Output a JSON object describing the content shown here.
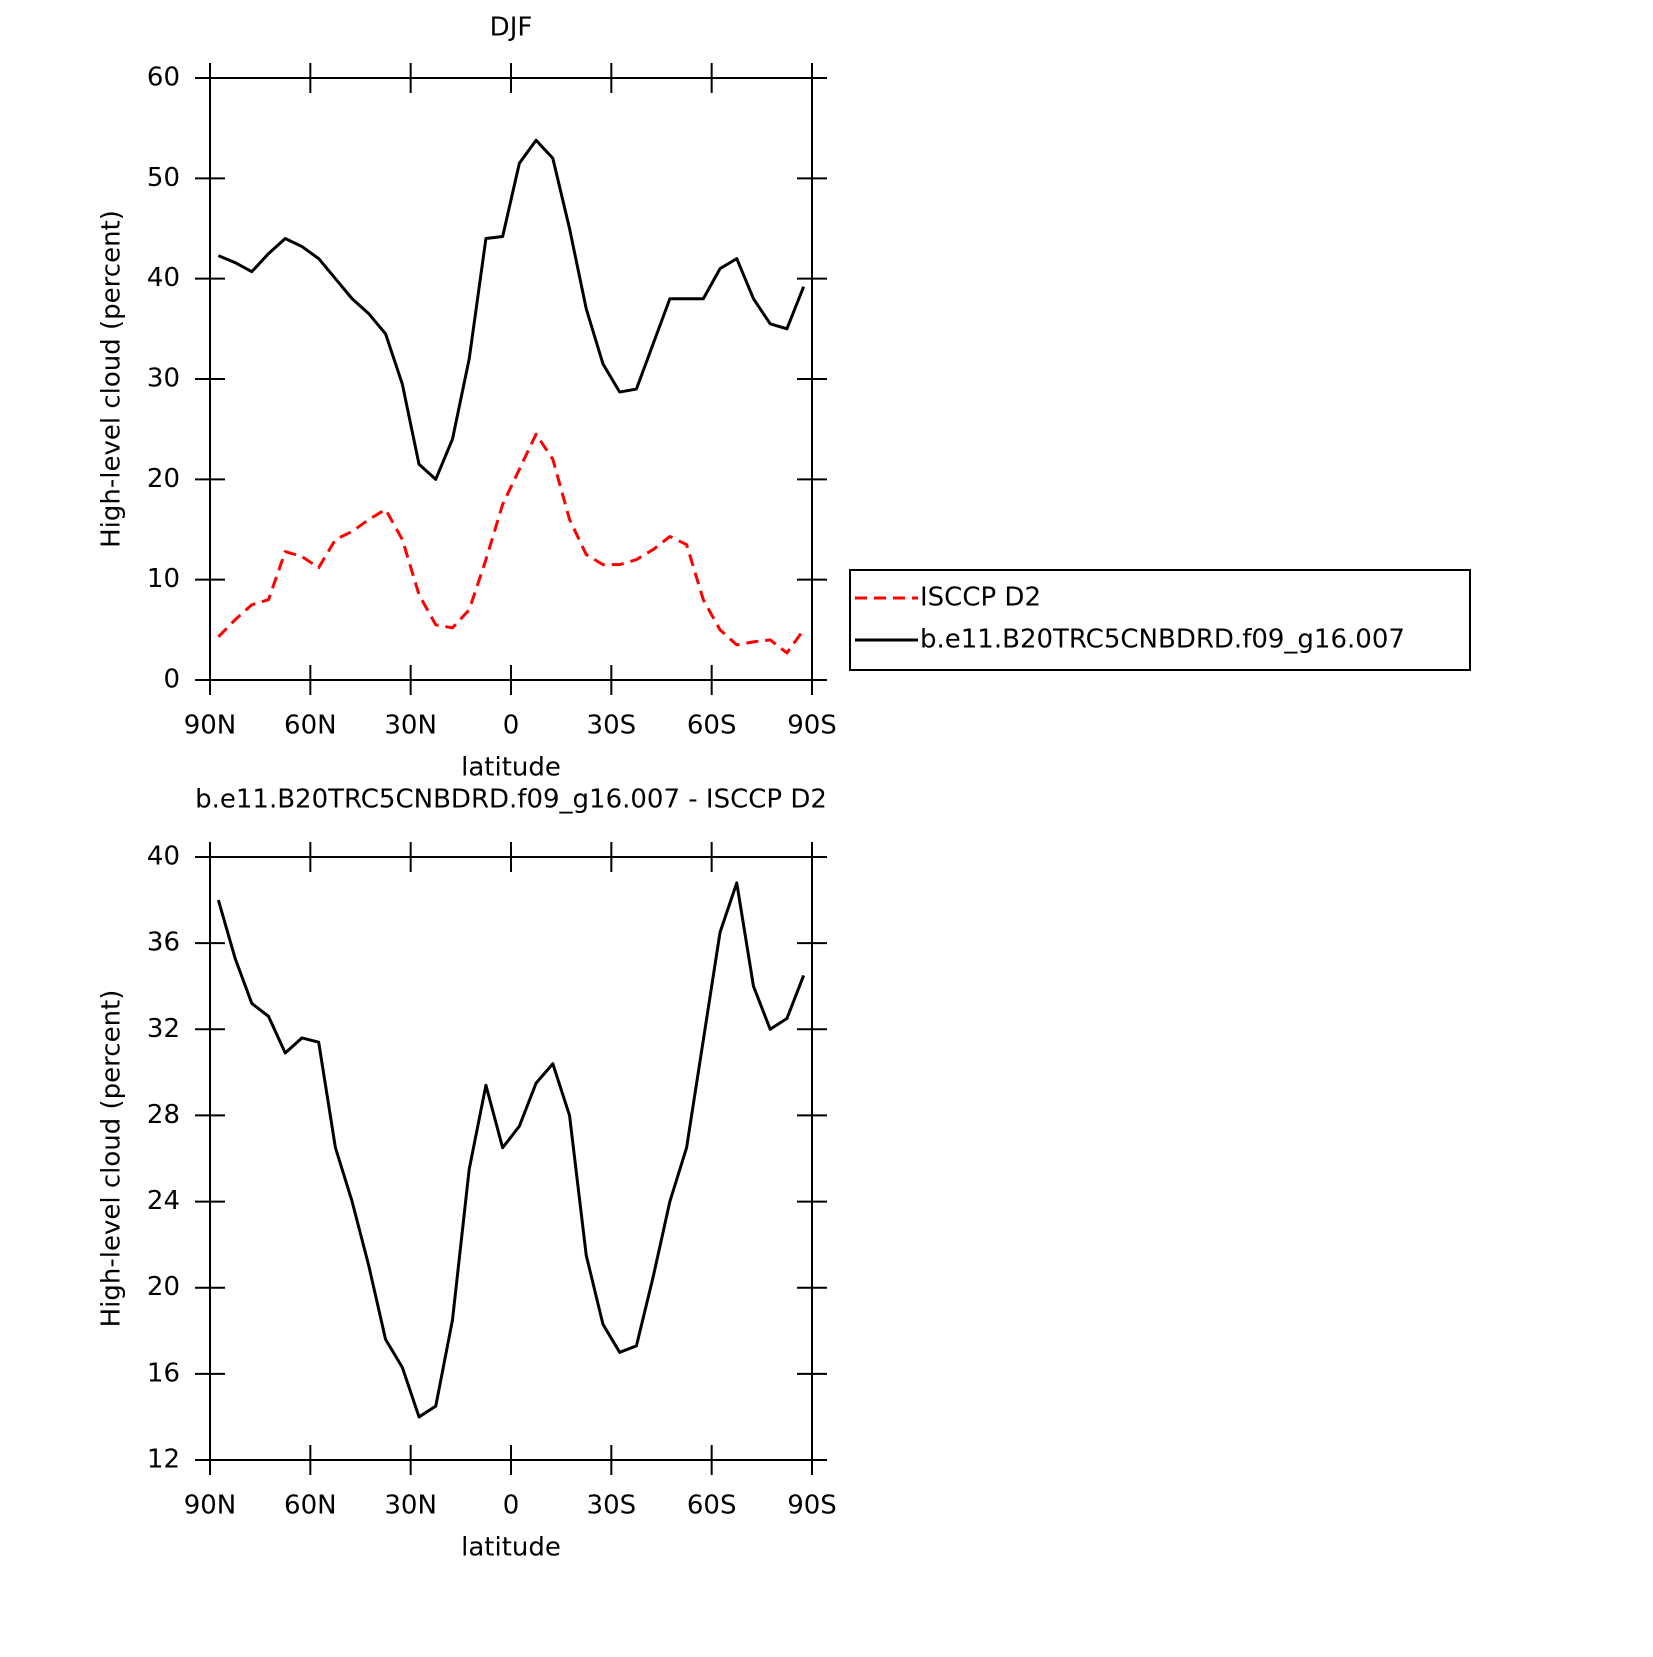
{
  "chart_data": [
    {
      "type": "line",
      "title": "DJF",
      "xlabel": "latitude",
      "ylabel": "High-level cloud (percent)",
      "x": [
        87.5,
        82.5,
        77.5,
        72.5,
        67.5,
        62.5,
        57.5,
        52.5,
        47.5,
        42.5,
        37.5,
        32.5,
        27.5,
        22.5,
        17.5,
        12.5,
        7.5,
        2.5,
        -2.5,
        -7.5,
        -12.5,
        -17.5,
        -22.5,
        -27.5,
        -32.5,
        -37.5,
        -42.5,
        -47.5,
        -52.5,
        -57.5,
        -62.5,
        -67.5,
        -72.5,
        -77.5,
        -82.5,
        -87.5
      ],
      "xlim": [
        90,
        -90
      ],
      "xticks": [
        {
          "value": 90,
          "label": "90N"
        },
        {
          "value": 60,
          "label": "60N"
        },
        {
          "value": 30,
          "label": "30N"
        },
        0,
        {
          "value": -30,
          "label": "30S"
        },
        {
          "value": -60,
          "label": "60S"
        },
        {
          "value": -90,
          "label": "90S"
        }
      ],
      "ylim": [
        0,
        60
      ],
      "yticks": [
        0,
        10,
        20,
        30,
        40,
        50,
        60
      ],
      "legend": "outside-right",
      "series": [
        {
          "name": "ISCCP D2",
          "color": "#ff0000",
          "dash": true,
          "values": [
            4.3,
            6.0,
            7.5,
            8.0,
            12.8,
            12.3,
            11.2,
            14.0,
            14.8,
            16.0,
            17.0,
            14.0,
            8.5,
            5.5,
            5.2,
            7.0,
            12.0,
            17.5,
            21.0,
            24.5,
            22.0,
            16.0,
            12.5,
            11.5,
            11.5,
            12.0,
            13.0,
            14.3,
            13.5,
            8.0,
            5.0,
            3.5,
            3.8,
            4.0,
            2.7,
            5.0
          ]
        },
        {
          "name": "b.e11.B20TRC5CNBDRD.f09_g16.007",
          "color": "#000000",
          "dash": false,
          "values": [
            42.3,
            41.6,
            40.7,
            42.5,
            44.0,
            43.2,
            42.0,
            40.0,
            38.0,
            36.5,
            34.5,
            29.5,
            21.5,
            20.0,
            24.0,
            32.0,
            44.0,
            44.2,
            51.5,
            53.8,
            52.0,
            45.0,
            37.0,
            31.5,
            28.7,
            29.0,
            33.5,
            38.0,
            38.0,
            38.0,
            41.0,
            42.0,
            38.0,
            35.5,
            35.0,
            39.2
          ]
        }
      ]
    },
    {
      "type": "line",
      "title": "b.e11.B20TRC5CNBDRD.f09_g16.007 - ISCCP D2",
      "xlabel": "latitude",
      "ylabel": "High-level cloud (percent)",
      "x": [
        87.5,
        82.5,
        77.5,
        72.5,
        67.5,
        62.5,
        57.5,
        52.5,
        47.5,
        42.5,
        37.5,
        32.5,
        27.5,
        22.5,
        17.5,
        12.5,
        7.5,
        2.5,
        -2.5,
        -7.5,
        -12.5,
        -17.5,
        -22.5,
        -27.5,
        -32.5,
        -37.5,
        -42.5,
        -47.5,
        -52.5,
        -57.5,
        -62.5,
        -67.5,
        -72.5,
        -77.5,
        -82.5,
        -87.5
      ],
      "xlim": [
        90,
        -90
      ],
      "xticks": [
        {
          "value": 90,
          "label": "90N"
        },
        {
          "value": 60,
          "label": "60N"
        },
        {
          "value": 30,
          "label": "30N"
        },
        0,
        {
          "value": -30,
          "label": "30S"
        },
        {
          "value": -60,
          "label": "60S"
        },
        {
          "value": -90,
          "label": "90S"
        }
      ],
      "ylim": [
        12,
        40
      ],
      "yticks": [
        12,
        16,
        20,
        24,
        28,
        32,
        36,
        40
      ],
      "color": "#000000",
      "values": [
        38.0,
        35.3,
        33.2,
        32.6,
        30.9,
        31.6,
        31.4,
        26.5,
        24.0,
        21.0,
        17.6,
        16.3,
        14.0,
        14.5,
        18.5,
        25.5,
        29.4,
        26.5,
        27.5,
        29.5,
        30.4,
        28.0,
        21.5,
        18.3,
        17.0,
        17.3,
        20.5,
        24.0,
        26.5,
        31.5,
        36.5,
        38.8,
        34.0,
        32.0,
        32.5,
        34.5
      ]
    }
  ]
}
